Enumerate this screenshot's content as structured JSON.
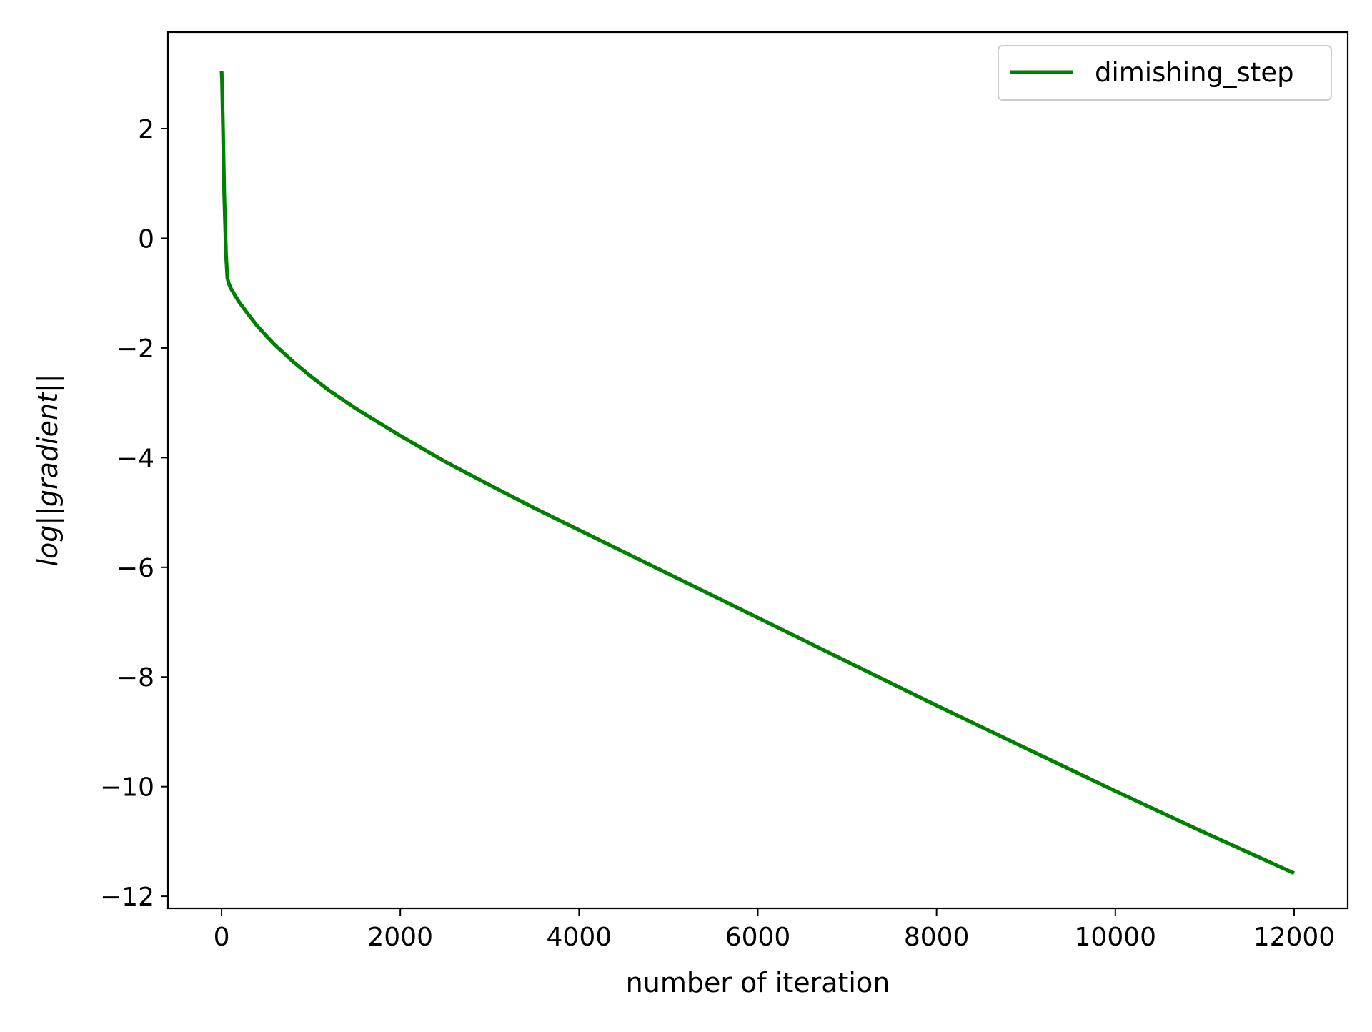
{
  "chart_data": {
    "type": "line",
    "title": "",
    "xlabel": "number of iteration",
    "ylabel": "log||gradient||",
    "xlim": [
      -600,
      12600
    ],
    "ylim": [
      -12.22,
      3.76
    ],
    "xticks": [
      0,
      2000,
      4000,
      6000,
      8000,
      10000,
      12000
    ],
    "xtick_labels": [
      "0",
      "2000",
      "4000",
      "6000",
      "8000",
      "10000",
      "12000"
    ],
    "yticks": [
      2,
      0,
      -2,
      -4,
      -6,
      -8,
      -10,
      -12
    ],
    "ytick_labels": [
      "2",
      "0",
      "−2",
      "−4",
      "−6",
      "−8",
      "−10",
      "−12"
    ],
    "grid": false,
    "legend_position": "top-right",
    "series": [
      {
        "name": "dimishing_step",
        "color": "#008000",
        "x": [
          0,
          5,
          15,
          30,
          50,
          65,
          80,
          100,
          150,
          200,
          300,
          400,
          500,
          600,
          800,
          1000,
          1200,
          1500,
          2000,
          2500,
          3000,
          3500,
          4000,
          5000,
          6000,
          7000,
          8000,
          9000,
          10000,
          11000,
          12000
        ],
        "y": [
          3.05,
          2.9,
          2.1,
          0.8,
          -0.3,
          -0.72,
          -0.82,
          -0.9,
          -1.04,
          -1.17,
          -1.39,
          -1.6,
          -1.78,
          -1.95,
          -2.25,
          -2.52,
          -2.77,
          -3.1,
          -3.6,
          -4.07,
          -4.5,
          -4.92,
          -5.32,
          -6.12,
          -6.92,
          -7.72,
          -8.52,
          -9.3,
          -10.08,
          -10.84,
          -11.58
        ]
      }
    ]
  }
}
